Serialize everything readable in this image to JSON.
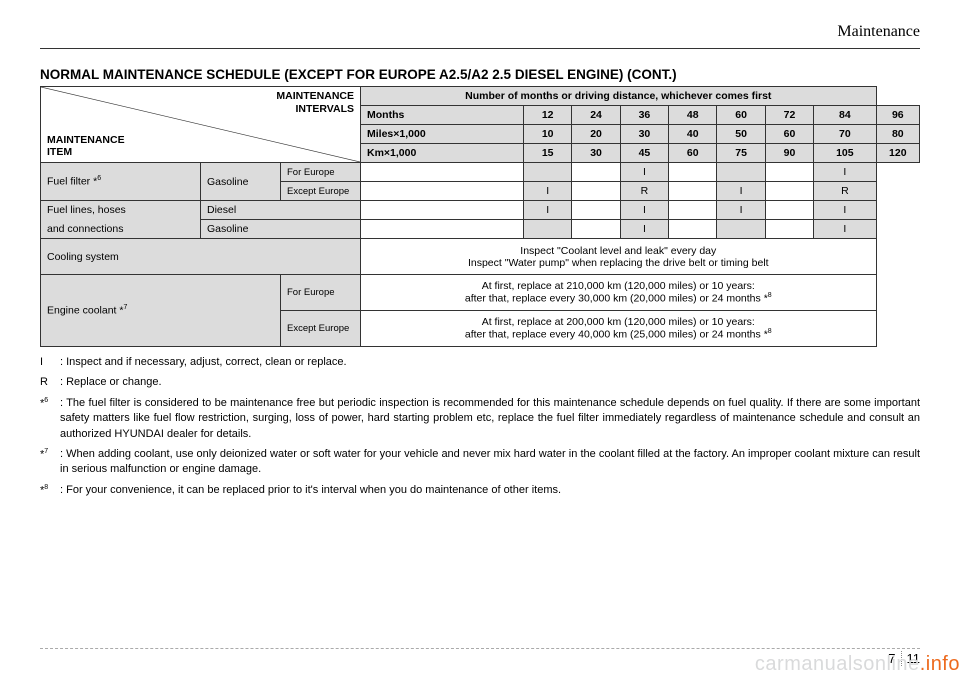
{
  "header": {
    "section": "Maintenance"
  },
  "title": "NORMAL MAINTENANCE SCHEDULE (EXCEPT FOR EUROPE A2.5/A2 2.5 DIESEL ENGINE) (CONT.)",
  "corner": {
    "top": "MAINTENANCE\nINTERVALS",
    "bottom": "MAINTENANCE\nITEM"
  },
  "header_row": {
    "top_label": "Number of months or driving distance, whichever comes first",
    "rows": [
      {
        "label": "Months",
        "vals": [
          "12",
          "24",
          "36",
          "48",
          "60",
          "72",
          "84",
          "96"
        ]
      },
      {
        "label": "Miles×1,000",
        "vals": [
          "10",
          "20",
          "30",
          "40",
          "50",
          "60",
          "70",
          "80"
        ]
      },
      {
        "label": "Km×1,000",
        "vals": [
          "15",
          "30",
          "45",
          "60",
          "75",
          "90",
          "105",
          "120"
        ]
      }
    ]
  },
  "rows": {
    "fuel_filter": {
      "label": "Fuel filter *",
      "sup": "6",
      "sub": "Gasoline",
      "r1": {
        "label": "For Europe",
        "vals": [
          "",
          "",
          "",
          "I",
          "",
          "",
          "",
          "I"
        ]
      },
      "r2": {
        "label": "Except Europe",
        "vals": [
          "",
          "I",
          "",
          "R",
          "",
          "I",
          "",
          "R"
        ]
      }
    },
    "fuel_lines": {
      "label_l1": "Fuel lines, hoses",
      "label_l2": "and connections",
      "diesel": {
        "label": "Diesel",
        "vals": [
          "",
          "I",
          "",
          "I",
          "",
          "I",
          "",
          "I"
        ]
      },
      "gasoline": {
        "label": "Gasoline",
        "vals": [
          "",
          "",
          "",
          "I",
          "",
          "",
          "",
          "I"
        ]
      }
    },
    "cooling": {
      "label": "Cooling system",
      "text_l1": "Inspect \"Coolant level and leak\" every day",
      "text_l2": "Inspect \"Water pump\" when replacing the drive belt or timing belt"
    },
    "coolant": {
      "label": "Engine coolant *",
      "sup": "7",
      "eu": {
        "label": "For Europe",
        "l1": "At first, replace at 210,000 km (120,000 miles) or 10 years:",
        "l2": "after that, replace every 30,000 km (20,000 miles) or 24 months *",
        "l2_sup": "8"
      },
      "ex": {
        "label": "Except Europe",
        "l1": "At first, replace at 200,000 km (120,000 miles) or 10 years:",
        "l2": "after that, replace every 40,000 km (25,000 miles) or 24 months *",
        "l2_sup": "8"
      }
    }
  },
  "notes": {
    "i": {
      "key": "I",
      "text": ": Inspect and if necessary, adjust, correct, clean or replace."
    },
    "r": {
      "key": "R",
      "text": ": Replace or change."
    },
    "n6": {
      "key": "*",
      "sup": "6",
      "text": ": The fuel filter is considered to be maintenance free but periodic inspection is recommended for this maintenance schedule depends on fuel quality. If there are some important safety matters like fuel flow restriction, surging, loss of power, hard starting problem etc, replace the fuel filter immediately regardless of maintenance schedule and consult an authorized HYUNDAI dealer for details."
    },
    "n7": {
      "key": "*",
      "sup": "7",
      "text": ": When adding coolant, use only deionized water or soft water for your vehicle and never mix hard water in the coolant filled at the factory. An improper coolant mixture can result in serious malfunction or engine damage."
    },
    "n8": {
      "key": "*",
      "sup": "8",
      "text": ": For your convenience, it can be replaced prior to it's interval when you do maintenance of other items."
    }
  },
  "footer": {
    "chapter": "7",
    "page": "11"
  },
  "watermark": {
    "t1": "carmanualsonline",
    "t2": ".info"
  },
  "style": {
    "shaded_bg": "#dcdcdc",
    "col_widths": {
      "c1": 160,
      "c2": 80,
      "c3": 80,
      "data_each": 70
    }
  }
}
